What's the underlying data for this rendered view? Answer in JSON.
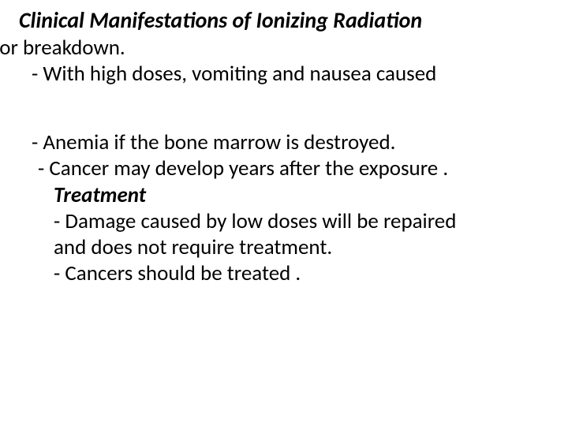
{
  "title": "Clinical Manifestations of Ionizing Radiation",
  "line1": "ss or breakdown.",
  "line2": "- With high doses, vomiting and nausea caused",
  "line3": "- Anemia if the bone marrow is destroyed.",
  "line4": "- Cancer may develop years after the exposure .",
  "subhead": "Treatment",
  "line5": "- Damage caused by low doses will be repaired",
  "line6": "and does not require treatment.",
  "line7": "- Cancers should be treated ."
}
